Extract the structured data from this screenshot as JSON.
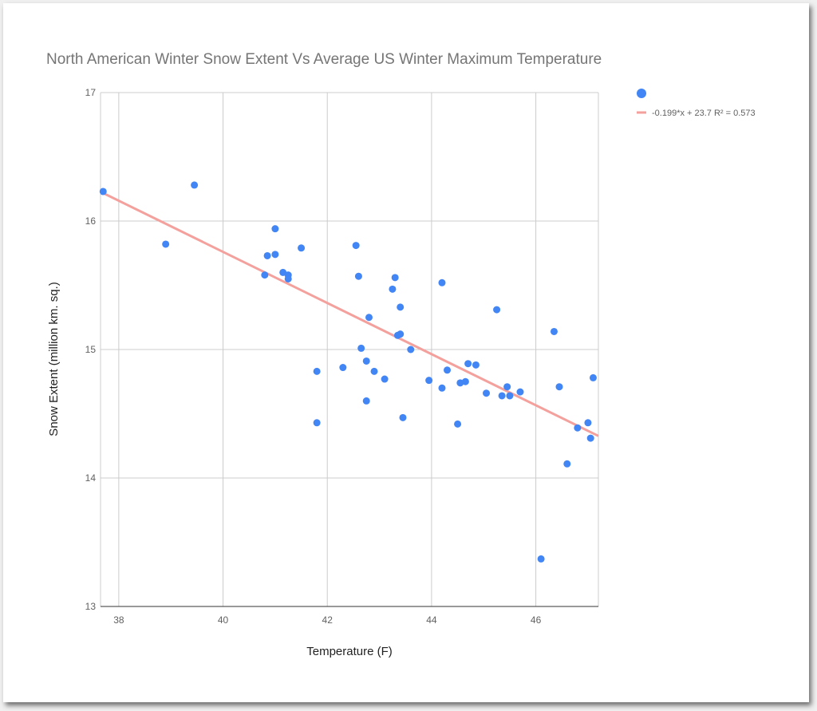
{
  "chart_data": {
    "type": "scatter",
    "title": "North American Winter Snow Extent Vs Average US Winter Maximum Temperature",
    "xlabel": "Temperature (F)",
    "ylabel": "Snow Extent (million km. sq.)",
    "xlim": [
      37.65,
      47.2
    ],
    "ylim": [
      13,
      17
    ],
    "xticks": [
      "38",
      "40",
      "42",
      "44",
      "46"
    ],
    "yticks": [
      "13",
      "14",
      "15",
      "16",
      "17"
    ],
    "grid": true,
    "legend_position": "right",
    "colors": {
      "points": "#4285f4",
      "trend": "#f4a09c"
    },
    "series": [
      {
        "name": "",
        "points": [
          [
            37.7,
            16.23
          ],
          [
            38.9,
            15.82
          ],
          [
            39.45,
            16.28
          ],
          [
            40.8,
            15.58
          ],
          [
            40.85,
            15.73
          ],
          [
            41.0,
            15.74
          ],
          [
            41.0,
            15.94
          ],
          [
            41.15,
            15.6
          ],
          [
            41.25,
            15.58
          ],
          [
            41.25,
            15.55
          ],
          [
            41.5,
            15.79
          ],
          [
            41.8,
            14.83
          ],
          [
            41.8,
            14.43
          ],
          [
            42.3,
            14.86
          ],
          [
            42.55,
            15.81
          ],
          [
            42.6,
            15.57
          ],
          [
            42.65,
            15.01
          ],
          [
            42.75,
            14.6
          ],
          [
            42.75,
            14.91
          ],
          [
            42.8,
            15.25
          ],
          [
            42.9,
            14.83
          ],
          [
            43.1,
            14.77
          ],
          [
            43.25,
            15.47
          ],
          [
            43.3,
            15.56
          ],
          [
            43.35,
            15.11
          ],
          [
            43.4,
            15.12
          ],
          [
            43.4,
            15.33
          ],
          [
            43.45,
            14.47
          ],
          [
            43.6,
            15.0
          ],
          [
            43.95,
            14.76
          ],
          [
            44.2,
            14.7
          ],
          [
            44.2,
            15.52
          ],
          [
            44.3,
            14.84
          ],
          [
            44.5,
            14.42
          ],
          [
            44.55,
            14.74
          ],
          [
            44.65,
            14.75
          ],
          [
            44.7,
            14.89
          ],
          [
            44.85,
            14.88
          ],
          [
            45.05,
            14.66
          ],
          [
            45.25,
            15.31
          ],
          [
            45.35,
            14.64
          ],
          [
            45.45,
            14.71
          ],
          [
            45.5,
            14.64
          ],
          [
            45.7,
            14.67
          ],
          [
            46.1,
            13.37
          ],
          [
            46.35,
            15.14
          ],
          [
            46.45,
            14.71
          ],
          [
            46.6,
            14.11
          ],
          [
            46.8,
            14.39
          ],
          [
            47.0,
            14.43
          ],
          [
            47.05,
            14.31
          ],
          [
            47.1,
            14.78
          ]
        ]
      }
    ],
    "trendline": {
      "label": "-0.199*x + 23.7 R² = 0.573",
      "slope": -0.199,
      "intercept": 23.72,
      "r2": 0.573
    }
  }
}
